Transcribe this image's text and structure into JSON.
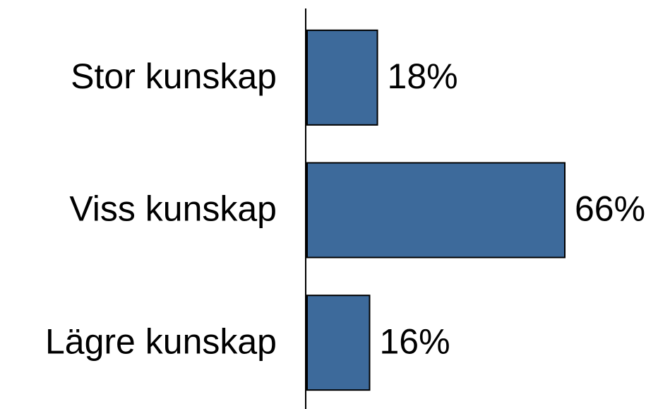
{
  "chart_data": {
    "type": "hbar",
    "categories": [
      "Stor kunskap",
      "Viss kunskap",
      "Lägre kunskap"
    ],
    "values": [
      18,
      66,
      16
    ],
    "value_labels": [
      "18%",
      "66%",
      "16%"
    ],
    "color": "#3d6a9b"
  }
}
